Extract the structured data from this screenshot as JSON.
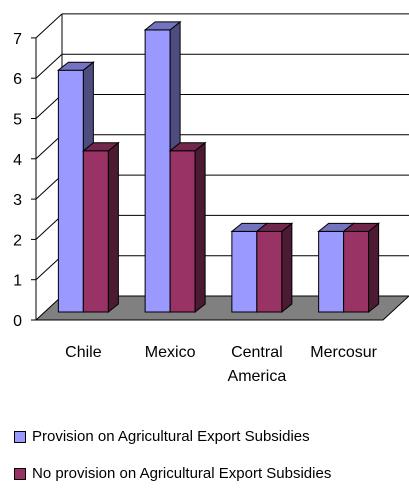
{
  "chart_data": {
    "type": "bar",
    "categories": [
      "Chile",
      "Mexico",
      "Central America",
      "Mercosur"
    ],
    "category_lines": [
      [
        "Chile"
      ],
      [
        "Mexico"
      ],
      [
        "Central",
        "America"
      ],
      [
        "Mercosur"
      ]
    ],
    "series": [
      {
        "name": "Provision on Agricultural Export Subsidies",
        "values": [
          6,
          7,
          2,
          2
        ],
        "color": "#9999ff"
      },
      {
        "name": "No provision on Agricultural Export Subsidies",
        "values": [
          4,
          4,
          2,
          2
        ],
        "color": "#993366"
      }
    ],
    "yticks": [
      "0",
      "1",
      "2",
      "3",
      "4",
      "5",
      "6",
      "7"
    ],
    "ylim": [
      0,
      7
    ],
    "grid": true,
    "style": "3d-column",
    "legend_position": "bottom",
    "floor_color": "#808080"
  }
}
